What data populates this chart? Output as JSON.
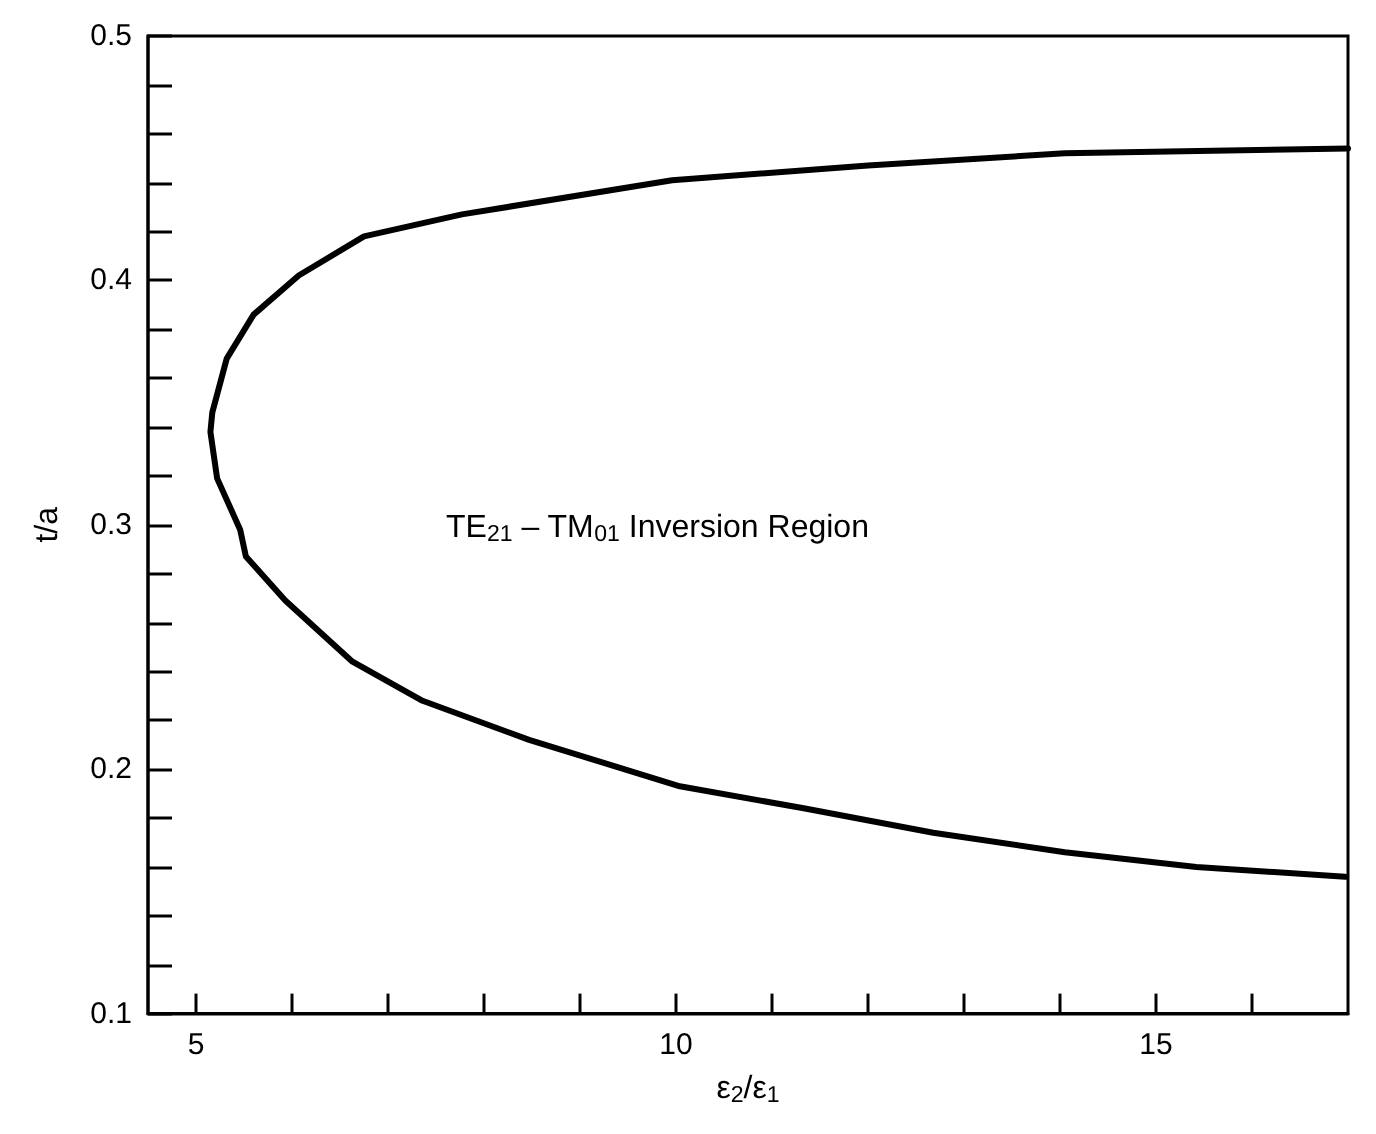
{
  "chart_data": {
    "type": "line",
    "xlabel": "ε$_{2}$/ε$_{1}$",
    "ylabel": "t/a",
    "annotations": [
      "TE$_{21}$ – TM$_{01}$ Inversion Region"
    ],
    "series": [
      {
        "color": "#000000",
        "x": [
          17,
          14.05,
          12.0,
          9.96,
          7.77,
          6.75,
          6.07,
          5.6,
          5.32,
          5.17,
          5.15,
          5.22,
          5.46,
          5.52,
          5.93,
          6.63,
          7.36,
          8.47,
          10.04,
          11.33,
          12.68,
          14.05,
          15.42,
          16.97
        ],
        "values": [
          0.454,
          0.452,
          0.447,
          0.441,
          0.427,
          0.418,
          0.402,
          0.386,
          0.368,
          0.346,
          0.338,
          0.319,
          0.298,
          0.287,
          0.269,
          0.244,
          0.228,
          0.212,
          0.193,
          0.184,
          0.174,
          0.166,
          0.16,
          0.156
        ]
      }
    ],
    "xlim": [
      4.5,
      17
    ],
    "ylim": [
      0.1,
      0.5
    ],
    "xticks": [
      5,
      {
        "value": 6,
        "label": null
      },
      {
        "value": 7,
        "label": null
      },
      {
        "value": 8,
        "label": null
      },
      {
        "value": 9,
        "label": null
      },
      10,
      {
        "value": 11,
        "label": null
      },
      {
        "value": 12,
        "label": null
      },
      {
        "value": 13,
        "label": null
      },
      {
        "value": 14,
        "label": null
      },
      15,
      {
        "value": 16,
        "label": null
      }
    ],
    "yticks": [
      0.1,
      {
        "value": 0.12,
        "label": null
      },
      {
        "value": 0.14,
        "label": null
      },
      {
        "value": 0.16,
        "label": null
      },
      {
        "value": 0.18,
        "label": null
      },
      0.2,
      {
        "value": 0.22,
        "label": null
      },
      {
        "value": 0.24,
        "label": null
      },
      {
        "value": 0.26,
        "label": null
      },
      {
        "value": 0.28,
        "label": null
      },
      0.3,
      {
        "value": 0.32,
        "label": null
      },
      {
        "value": 0.34,
        "label": null
      },
      {
        "value": 0.36,
        "label": null
      },
      {
        "value": 0.38,
        "label": null
      },
      0.4,
      {
        "value": 0.42,
        "label": null
      },
      {
        "value": 0.44,
        "label": null
      },
      {
        "value": 0.46,
        "label": null
      },
      {
        "value": 0.48,
        "label": null
      },
      0.5
    ],
    "grid": false,
    "marker": "none",
    "line_style": "solid"
  }
}
